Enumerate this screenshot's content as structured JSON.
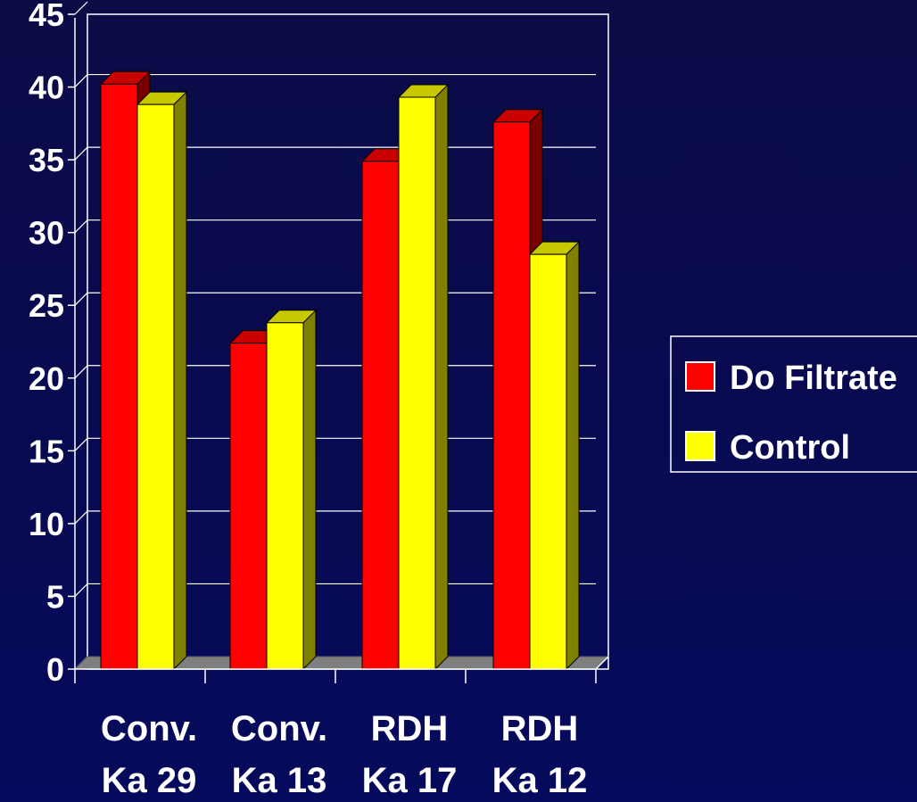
{
  "chart_data": {
    "type": "bar",
    "categories": [
      [
        "Conv.",
        "Ka 29"
      ],
      [
        "Conv.",
        "Ka 13"
      ],
      [
        "RDH",
        "Ka 17"
      ],
      [
        "RDH",
        "Ka 12"
      ]
    ],
    "series": [
      {
        "name": "Do Filtrate",
        "values": [
          40.2,
          22.4,
          34.9,
          37.6
        ]
      },
      {
        "name": "Control",
        "values": [
          38.8,
          23.8,
          39.3,
          28.5
        ]
      }
    ],
    "ylim": [
      0,
      45
    ],
    "yticks": [
      "0",
      "5",
      "10",
      "15",
      "20",
      "25",
      "30",
      "35",
      "40",
      "45"
    ],
    "grid": true,
    "legend_position": "right",
    "three_d": true
  },
  "colors": {
    "series_front": [
      "#ff0000",
      "#ffff00"
    ],
    "series_top": [
      "#c80000",
      "#c8c800"
    ],
    "series_side": [
      "#7a0000",
      "#808000"
    ],
    "axis": "#ffffff",
    "floor": "#7f7f7f"
  }
}
